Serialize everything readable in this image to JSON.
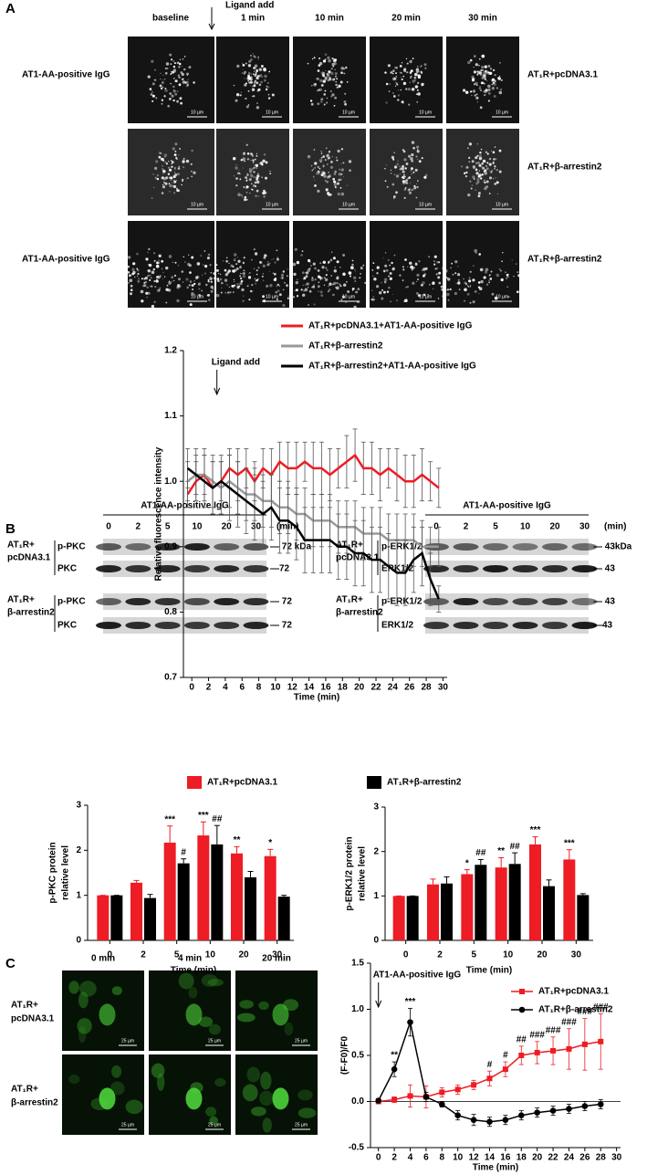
{
  "figure": {
    "panel_labels": [
      "A",
      "B",
      "C"
    ],
    "a": {
      "columns": [
        "baseline",
        "1 min",
        "10 min",
        "20 min",
        "30 min"
      ],
      "ligand": "Ligand add",
      "row_labels_left": [
        "AT1-AA-positive IgG",
        null,
        "AT1-AA-positive IgG"
      ],
      "row_labels_right": [
        "AT₁R+pcDNA3.1",
        "AT₁R+β-arrestin2",
        "AT₁R+β-arrestin2"
      ],
      "scale": "10 µm"
    },
    "b": {
      "blots": [
        {
          "header": "AT1-AA-positive IgG",
          "lanes": [
            "0",
            "2",
            "5",
            "10",
            "20",
            "30"
          ],
          "unit": "(min)",
          "groups": [
            {
              "label": [
                "AT₁R+",
                "pcDNA3.1"
              ],
              "rows": [
                {
                  "name": "p-PKC",
                  "marker": "— 72 kDa"
                },
                {
                  "name": "PKC",
                  "marker": "—72"
                }
              ]
            },
            {
              "label": [
                "AT₁R+",
                "β-arrestin2"
              ],
              "rows": [
                {
                  "name": "p-PKC",
                  "marker": "— 72"
                },
                {
                  "name": "PKC",
                  "marker": "— 72"
                }
              ]
            }
          ]
        },
        {
          "header": "AT1-AA-positive IgG",
          "lanes": [
            "0",
            "2",
            "5",
            "10",
            "20",
            "30"
          ],
          "unit": "(min)",
          "groups": [
            {
              "label": [
                "AT₁R+",
                "pcDNA3.1"
              ],
              "rows": [
                {
                  "name": "p-ERK1/2",
                  "marker": "— 43kDa"
                },
                {
                  "name": "ERK1/2",
                  "marker": "— 43"
                }
              ]
            },
            {
              "label": [
                "AT₁R+",
                "β-arrestin2"
              ],
              "rows": [
                {
                  "name": "p-ERK1/2",
                  "marker": "— 43"
                },
                {
                  "name": "ERK1/2",
                  "marker": "—43"
                }
              ]
            }
          ]
        }
      ]
    },
    "c": {
      "columns": [
        "0 min",
        "4 min",
        "20 min"
      ],
      "rows": [
        [
          "AT₁R+",
          "pcDNA3.1"
        ],
        [
          "AT₁R+",
          "β-arrestin2"
        ]
      ],
      "scale": "25 µm"
    }
  },
  "chart_data": [
    {
      "type": "line",
      "xlabel": "Time (min)",
      "ylabel": "Relative fluorescence intensity",
      "annotation": {
        "text": "Ligand add",
        "x": 3
      },
      "xlim": [
        -1,
        30.5
      ],
      "ylim": [
        0.7,
        1.2
      ],
      "xticks": [
        0,
        2,
        4,
        6,
        8,
        10,
        12,
        14,
        16,
        18,
        20,
        22,
        24,
        26,
        28,
        30
      ],
      "yticks": [
        0.7,
        0.8,
        0.9,
        {
          "value": 1,
          "label": "1.0"
        },
        1.1,
        1.2
      ],
      "error_color": "#555555",
      "x": [
        -0.5,
        0.5,
        1.5,
        2.5,
        3.5,
        4.5,
        5.5,
        6.5,
        7.5,
        8.5,
        9.5,
        10.5,
        11.5,
        12.5,
        13.5,
        14.5,
        15.5,
        16.5,
        17.5,
        18.5,
        19.5,
        20.5,
        21.5,
        22.5,
        23.5,
        24.5,
        25.5,
        26.5,
        27.5,
        28.5,
        29.5
      ],
      "series": [
        {
          "name": "AT₁R+pcDNA3.1+AT1-AA-positive IgG",
          "color": "#ee1c24",
          "values": [
            0.98,
            1.0,
            1.01,
            0.99,
            1.0,
            1.02,
            1.01,
            1.02,
            1.0,
            1.02,
            1.01,
            1.03,
            1.02,
            1.02,
            1.03,
            1.02,
            1.02,
            1.01,
            1.02,
            1.03,
            1.04,
            1.02,
            1.02,
            1.01,
            1.02,
            1.01,
            1.0,
            1.0,
            1.01,
            1.0,
            0.99
          ],
          "errors": [
            0.02,
            0.03,
            0.03,
            0.04,
            0.03,
            0.03,
            0.04,
            0.03,
            0.03,
            0.03,
            0.04,
            0.03,
            0.04,
            0.04,
            0.03,
            0.04,
            0.04,
            0.04,
            0.03,
            0.04,
            0.04,
            0.04,
            0.04,
            0.04,
            0.03,
            0.04,
            0.04,
            0.04,
            0.04,
            0.03,
            0.03
          ]
        },
        {
          "name": "AT₁R+β-arrestin2",
          "color": "#999999",
          "values": [
            1.0,
            1.01,
            1.01,
            1.0,
            0.99,
            1.0,
            0.99,
            0.98,
            0.98,
            0.97,
            0.97,
            0.96,
            0.96,
            0.95,
            0.95,
            0.94,
            0.94,
            0.94,
            0.93,
            0.93,
            0.93,
            0.92,
            0.92,
            0.92,
            0.91,
            0.91,
            0.91,
            0.91,
            0.9,
            0.9,
            0.9
          ],
          "errors": [
            0.03,
            0.03,
            0.04,
            0.04,
            0.04,
            0.04,
            0.04,
            0.04,
            0.04,
            0.04,
            0.04,
            0.04,
            0.04,
            0.04,
            0.04,
            0.04,
            0.04,
            0.04,
            0.04,
            0.04,
            0.04,
            0.04,
            0.04,
            0.04,
            0.04,
            0.04,
            0.04,
            0.04,
            0.03,
            0.03,
            0.03
          ]
        },
        {
          "name": "AT₁R+β-arrestin2+AT1-AA-positive IgG",
          "color": "#000000",
          "values": [
            1.02,
            1.01,
            1.0,
            0.99,
            1.0,
            0.99,
            0.98,
            0.97,
            0.96,
            0.95,
            0.96,
            0.94,
            0.94,
            0.93,
            0.91,
            0.91,
            0.91,
            0.91,
            0.9,
            0.9,
            0.89,
            0.89,
            0.88,
            0.88,
            0.87,
            0.86,
            0.86,
            0.88,
            0.89,
            0.85,
            0.82
          ],
          "errors": [
            0.03,
            0.04,
            0.04,
            0.04,
            0.04,
            0.05,
            0.05,
            0.05,
            0.05,
            0.05,
            0.05,
            0.05,
            0.05,
            0.05,
            0.05,
            0.05,
            0.05,
            0.05,
            0.05,
            0.05,
            0.05,
            0.05,
            0.05,
            0.05,
            0.05,
            0.05,
            0.05,
            0.05,
            0.05,
            0.04,
            0.02
          ]
        }
      ]
    },
    {
      "type": "bar",
      "xlabel": "Time (min)",
      "ylabel": [
        "p-PKC protein",
        "relative level"
      ],
      "categories": [
        "0",
        "2",
        "5",
        "10",
        "20",
        "30"
      ],
      "ylim": [
        0,
        3
      ],
      "yticks": [
        0,
        1,
        2,
        3
      ],
      "series": [
        {
          "name": "AT₁R+pcDNA3.1",
          "color": "#ee1c24",
          "values": [
            1,
            1.28,
            2.17,
            2.33,
            1.93,
            1.87
          ],
          "errors": [
            0,
            0.05,
            0.37,
            0.3,
            0.15,
            0.15
          ],
          "annotations": [
            null,
            null,
            "***",
            "***",
            "**",
            "*"
          ]
        },
        {
          "color": "#000000",
          "values": [
            1,
            0.94,
            1.71,
            2.13,
            1.4,
            0.97
          ],
          "errors": [
            0,
            0.08,
            0.1,
            0.42,
            0.13,
            0.03
          ],
          "annotations": [
            null,
            null,
            "#",
            "##",
            null,
            null
          ]
        }
      ]
    },
    {
      "type": "bar",
      "xlabel": "Time (min)",
      "ylabel": [
        "p-ERK1/2 protein",
        "relative level"
      ],
      "categories": [
        "0",
        "2",
        "5",
        "10",
        "20",
        "30"
      ],
      "ylim": [
        0,
        3
      ],
      "yticks": [
        0,
        1,
        2,
        3
      ],
      "series": [
        {
          "color": "#ee1c24",
          "values": [
            1,
            1.26,
            1.49,
            1.64,
            2.16,
            1.82
          ],
          "errors": [
            0,
            0.12,
            0.1,
            0.22,
            0.17,
            0.22
          ],
          "annotations": [
            null,
            null,
            "*",
            "**",
            "***",
            "***"
          ]
        },
        {
          "name": "AT₁R+β-arrestin2",
          "color": "#000000",
          "values": [
            1,
            1.28,
            1.7,
            1.72,
            1.22,
            1.02
          ],
          "errors": [
            0,
            0.15,
            0.12,
            0.25,
            0.14,
            0.03
          ],
          "annotations": [
            null,
            null,
            "##",
            "##",
            null,
            null
          ]
        }
      ]
    },
    {
      "type": "line",
      "xlabel": "Time (min)",
      "ylabel": "(F-F0)/F0",
      "annotation": {
        "text": "AT1-AA-positive IgG",
        "x": 0
      },
      "xlim": [
        -1,
        30.5
      ],
      "ylim": [
        -0.5,
        1.5
      ],
      "xticks": [
        0,
        2,
        4,
        6,
        8,
        10,
        12,
        14,
        16,
        18,
        20,
        22,
        24,
        26,
        28,
        30
      ],
      "yticks": [
        -0.5,
        {
          "value": 0,
          "label": "0.0"
        },
        0.5,
        {
          "value": 1,
          "label": "1.0"
        },
        1.5
      ],
      "x": [
        0,
        2,
        4,
        6,
        8,
        10,
        12,
        14,
        16,
        18,
        20,
        22,
        24,
        26,
        28
      ],
      "series": [
        {
          "name": "AT₁R+pcDNA3.1",
          "color": "#ee1c24",
          "marker": "square",
          "values": [
            0.0,
            0.02,
            0.06,
            0.05,
            0.1,
            0.13,
            0.18,
            0.25,
            0.35,
            0.5,
            0.53,
            0.55,
            0.57,
            0.62,
            0.65
          ],
          "errors": [
            0.02,
            0.03,
            0.12,
            0.12,
            0.05,
            0.05,
            0.05,
            0.08,
            0.08,
            0.1,
            0.12,
            0.15,
            0.22,
            0.28,
            0.3
          ],
          "annotations": [
            null,
            null,
            null,
            null,
            null,
            null,
            null,
            "#",
            "#",
            "##",
            "###",
            "###",
            "###",
            "###",
            "###"
          ]
        },
        {
          "name": "AT₁R+β-arrestin2",
          "color": "#000000",
          "marker": "circle",
          "values": [
            0.01,
            0.35,
            0.86,
            0.05,
            -0.03,
            -0.15,
            -0.2,
            -0.22,
            -0.2,
            -0.15,
            -0.12,
            -0.1,
            -0.08,
            -0.05,
            -0.03
          ],
          "errors": [
            0.02,
            0.08,
            0.15,
            0.05,
            0.03,
            0.05,
            0.06,
            0.05,
            0.05,
            0.05,
            0.05,
            0.05,
            0.05,
            0.05,
            0.05
          ],
          "annotations": [
            null,
            "**",
            "***",
            null,
            null,
            null,
            null,
            null,
            null,
            null,
            null,
            null,
            null,
            null,
            null
          ]
        }
      ]
    }
  ]
}
